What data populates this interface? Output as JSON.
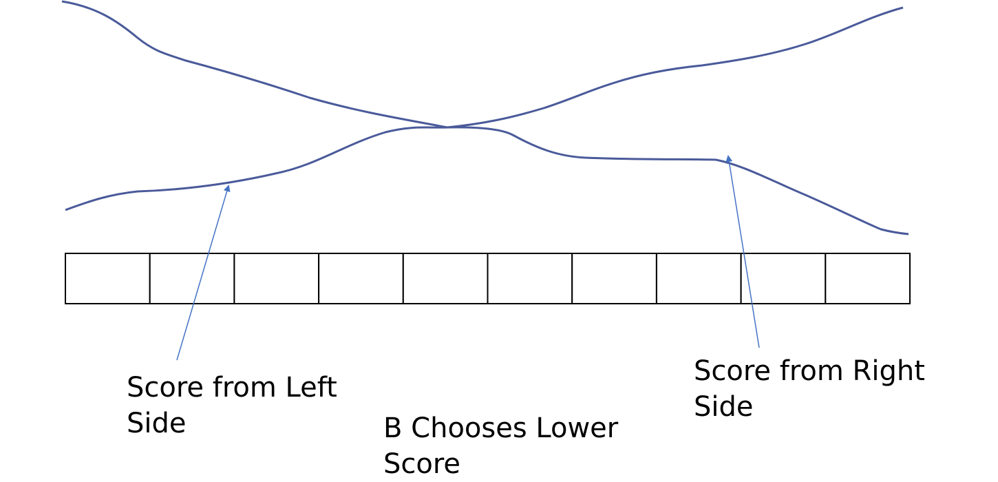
{
  "labels": {
    "left": {
      "line1": "Score from Left",
      "line2": "Side"
    },
    "right": {
      "line1": "Score from Right",
      "line2": "Side"
    },
    "bottom": {
      "line1": "B Chooses Lower",
      "line2": "Score"
    }
  },
  "array": {
    "cell_count": 10
  },
  "colors": {
    "curve": "#4a5a9a",
    "arrow": "#4472c4",
    "cell_border": "#000000",
    "background": "#ffffff",
    "text": "#000000"
  }
}
